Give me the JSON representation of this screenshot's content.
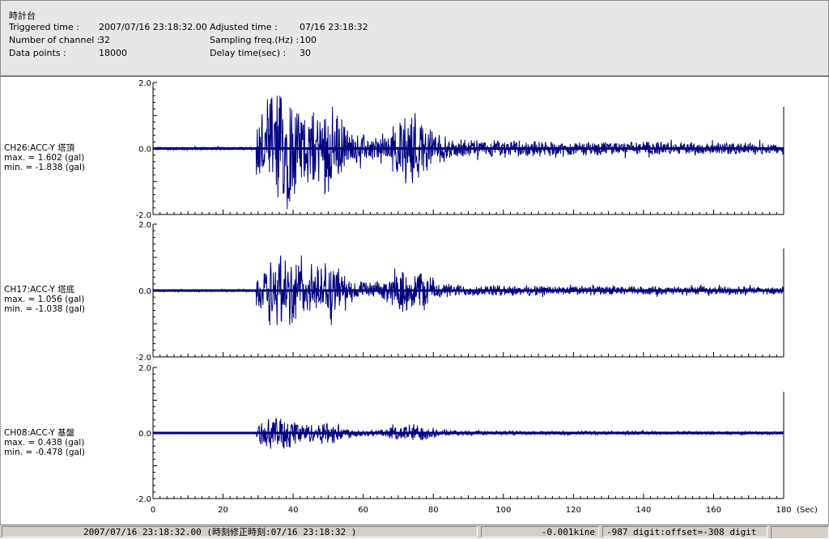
{
  "header": {
    "title": "時計台",
    "triggered_label": "Triggered time :",
    "triggered_value": "2007/07/16 23:18:32.00",
    "channels_label": "Number of channel :",
    "channels_value": "32",
    "datapoints_label": "Data points :",
    "datapoints_value": "18000",
    "adjusted_label": "Adjusted time :",
    "adjusted_value": "07/16 23:18:32",
    "sampling_label": "Sampling freq.(Hz) :",
    "sampling_value": "100",
    "delay_label": "Delay time(sec) :",
    "delay_value": "30"
  },
  "channels": [
    {
      "name": "CH26:ACC-Y 塔頂",
      "max": "max. = 1.602 (gal)",
      "min": "min. = -1.838 (gal)"
    },
    {
      "name": "CH17:ACC-Y 塔底",
      "max": "max. = 1.056 (gal)",
      "min": "min. = -1.038 (gal)"
    },
    {
      "name": "CH08:ACC-Y 基盤",
      "max": "max. = 0.438 (gal)",
      "min": "min. = -0.478 (gal)"
    }
  ],
  "chart_data": {
    "type": "line",
    "x_unit": "(Sec)",
    "xlim": [
      0,
      180
    ],
    "x_ticks": [
      "0",
      "20",
      "40",
      "60",
      "80",
      "100",
      "120",
      "140",
      "160",
      "180"
    ],
    "ylim": [
      -2.0,
      2.0
    ],
    "y_ticks": [
      "2.0",
      "0.0",
      "-2.0"
    ],
    "series_color": "#000080",
    "panels": [
      {
        "channel": "CH26:ACC-Y 塔頂",
        "max": 1.602,
        "min": -1.838,
        "event_onset_sec": 30
      },
      {
        "channel": "CH17:ACC-Y 塔底",
        "max": 1.056,
        "min": -1.038,
        "event_onset_sec": 30
      },
      {
        "channel": "CH08:ACC-Y 基盤",
        "max": 0.438,
        "min": -0.478,
        "event_onset_sec": 30
      }
    ]
  },
  "status": {
    "time": "2007/07/16 23:18:32.00  (時刻修正時刻:07/16 23:18:32  )",
    "value": "-0.001kine",
    "digit": "-987 digit:offset=-308 digit"
  }
}
